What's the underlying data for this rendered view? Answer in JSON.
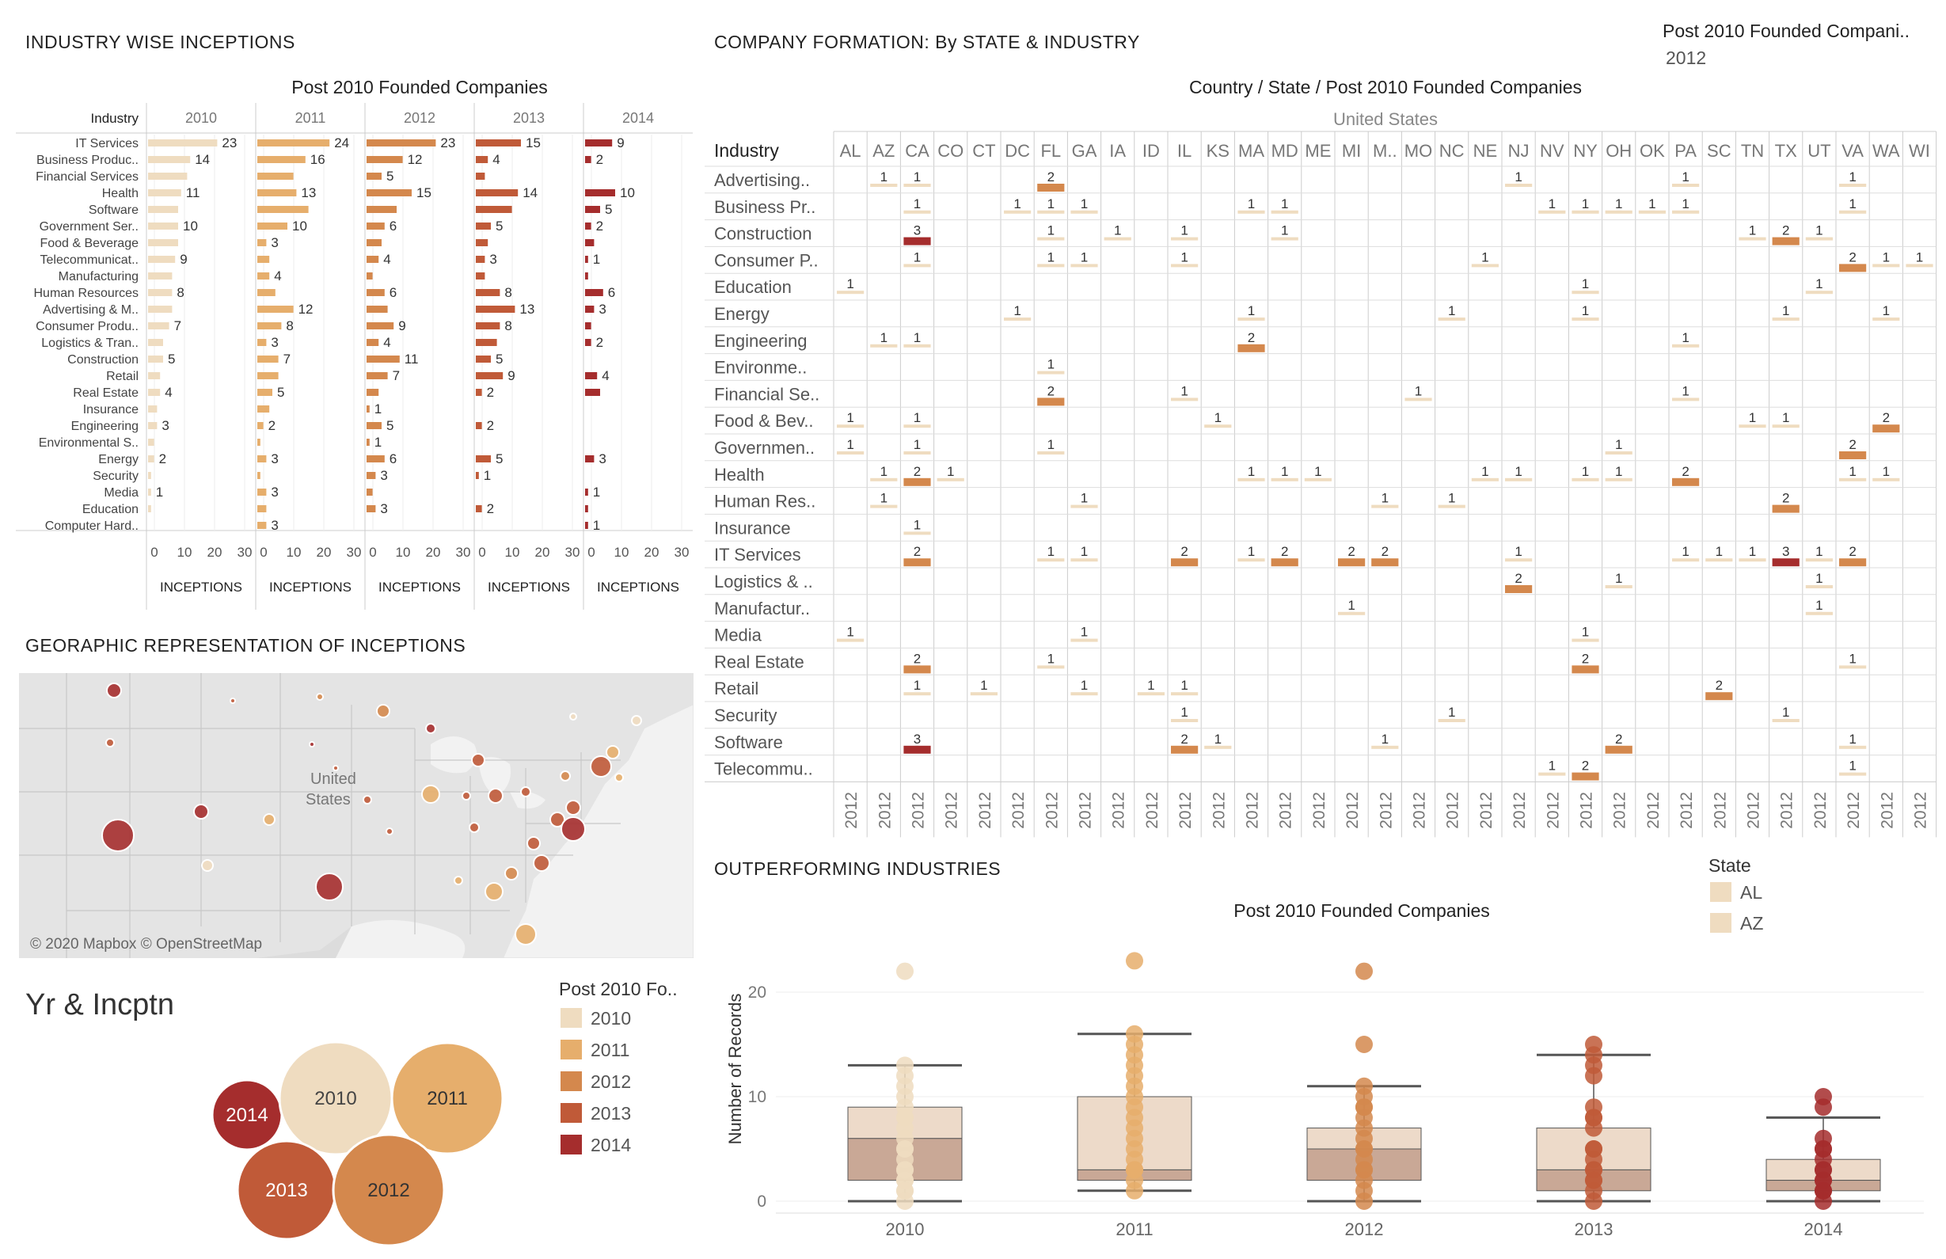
{
  "titles": {
    "industry_wise": "INDUSTRY WISE INCEPTIONS",
    "company_formation": "COMPANY FORMATION: By STATE & INDUSTRY",
    "geo": "GEORAPHIC REPRESENTATION OF INCEPTIONS",
    "outperforming": "OUTPERFORMING INDUSTRIES",
    "yr_incptn": "Yr & Incptn"
  },
  "filter": {
    "label": "Post 2010 Founded Compani..",
    "value": "2012"
  },
  "industry_chart": {
    "header": "Post 2010 Founded Companies",
    "row_header": "Industry",
    "axis_label": "INCEPTIONS",
    "ticks": [
      "0",
      "10",
      "20",
      "30"
    ],
    "years": [
      "2010",
      "2011",
      "2012",
      "2013",
      "2014"
    ],
    "industries": [
      "IT Services",
      "Business Produc..",
      "Financial Services",
      "Health",
      "Software",
      "Government Ser..",
      "Food & Beverage",
      "Telecommunicat..",
      "Manufacturing",
      "Human Resources",
      "Advertising & M..",
      "Consumer Produ..",
      "Logistics & Tran..",
      "Construction",
      "Retail",
      "Real Estate",
      "Insurance",
      "Engineering",
      "Environmental S..",
      "Energy",
      "Security",
      "Media",
      "Education",
      "Computer Hard.."
    ],
    "values": [
      [
        23,
        14,
        13,
        11,
        10,
        10,
        10,
        9,
        8,
        8,
        8,
        7,
        5,
        5,
        4,
        4,
        3,
        3,
        2,
        2,
        1,
        1,
        1,
        0
      ],
      [
        24,
        16,
        12,
        13,
        17,
        10,
        3,
        4,
        4,
        6,
        12,
        8,
        3,
        7,
        7,
        5,
        4,
        2,
        1,
        3,
        1,
        3,
        3,
        3
      ],
      [
        23,
        12,
        5,
        15,
        10,
        6,
        5,
        4,
        2,
        6,
        7,
        9,
        4,
        11,
        7,
        4,
        1,
        5,
        1,
        6,
        3,
        2,
        3,
        0
      ],
      [
        15,
        4,
        3,
        14,
        12,
        5,
        4,
        3,
        3,
        8,
        13,
        8,
        7,
        5,
        9,
        2,
        0,
        2,
        0,
        5,
        1,
        0,
        2,
        0
      ],
      [
        9,
        2,
        0,
        10,
        5,
        2,
        3,
        1,
        1,
        6,
        3,
        2,
        2,
        0,
        4,
        5,
        0,
        0,
        0,
        3,
        0,
        1,
        1,
        1
      ]
    ],
    "labels": [
      [
        "23",
        "14",
        "",
        "11",
        "",
        "10",
        "",
        "9",
        "",
        "8",
        "",
        "7",
        "",
        "5",
        "",
        "4",
        "",
        "3",
        "",
        "2",
        "",
        "1",
        "",
        ""
      ],
      [
        "24",
        "16",
        "",
        "13",
        "",
        "10",
        "3",
        "",
        "4",
        "",
        "12",
        "8",
        "3",
        "7",
        "",
        "5",
        "",
        "2",
        "",
        "3",
        "",
        "3",
        "",
        "3"
      ],
      [
        "23",
        "12",
        "5",
        "15",
        "",
        "6",
        "",
        "4",
        "",
        "6",
        "",
        "9",
        "4",
        "11",
        "7",
        "",
        "1",
        "5",
        "1",
        "6",
        "3",
        "",
        "3",
        ""
      ],
      [
        "15",
        "4",
        "",
        "14",
        "",
        "5",
        "",
        "3",
        "",
        "8",
        "13",
        "8",
        "",
        "5",
        "9",
        "2",
        "",
        "2",
        "",
        "5",
        "1",
        "",
        "2",
        ""
      ],
      [
        "9",
        "2",
        "",
        "10",
        "5",
        "2",
        "",
        "1",
        "",
        "6",
        "3",
        "",
        "2",
        "",
        "4",
        "",
        "",
        "",
        "",
        "3",
        "",
        "1",
        "",
        "1"
      ]
    ]
  },
  "heatmap": {
    "header": "Country  /  State  /  Post 2010 Founded Companies",
    "country": "United States",
    "row_header": "Industry",
    "states": [
      "AL",
      "AZ",
      "CA",
      "CO",
      "CT",
      "DC",
      "FL",
      "GA",
      "IA",
      "ID",
      "IL",
      "KS",
      "MA",
      "MD",
      "ME",
      "MI",
      "M..",
      "MO",
      "NC",
      "NE",
      "NJ",
      "NV",
      "NY",
      "OH",
      "OK",
      "PA",
      "SC",
      "TN",
      "TX",
      "UT",
      "VA",
      "WA",
      "WI"
    ],
    "year_label": "2012",
    "industries": [
      "Advertising..",
      "Business Pr..",
      "Construction",
      "Consumer P..",
      "Education",
      "Energy",
      "Engineering",
      "Environme..",
      "Financial Se..",
      "Food & Bev..",
      "Governmen..",
      "Health",
      "Human Res..",
      "Insurance",
      "IT Services",
      "Logistics & ..",
      "Manufactur..",
      "Media",
      "Real Estate",
      "Retail",
      "Security",
      "Software",
      "Telecommu.."
    ],
    "cells": [
      [
        0,
        1,
        1,
        0,
        0,
        0,
        2,
        0,
        0,
        0,
        0,
        0,
        0,
        0,
        0,
        0,
        0,
        0,
        0,
        0,
        1,
        0,
        0,
        0,
        0,
        1,
        0,
        0,
        0,
        0,
        1,
        0,
        0
      ],
      [
        0,
        0,
        1,
        0,
        0,
        1,
        1,
        1,
        0,
        0,
        0,
        0,
        1,
        1,
        0,
        0,
        0,
        0,
        0,
        0,
        0,
        1,
        1,
        1,
        1,
        1,
        0,
        0,
        0,
        0,
        1,
        0,
        0
      ],
      [
        0,
        0,
        3,
        0,
        0,
        0,
        1,
        0,
        1,
        0,
        1,
        0,
        0,
        1,
        0,
        0,
        0,
        0,
        0,
        0,
        0,
        0,
        0,
        0,
        0,
        0,
        0,
        1,
        2,
        1,
        0,
        0,
        0
      ],
      [
        0,
        0,
        1,
        0,
        0,
        0,
        1,
        1,
        0,
        0,
        1,
        0,
        0,
        0,
        0,
        0,
        0,
        0,
        0,
        1,
        0,
        0,
        0,
        0,
        0,
        0,
        0,
        0,
        0,
        0,
        2,
        1,
        1
      ],
      [
        1,
        0,
        0,
        0,
        0,
        0,
        0,
        0,
        0,
        0,
        0,
        0,
        0,
        0,
        0,
        0,
        0,
        0,
        0,
        0,
        0,
        0,
        1,
        0,
        0,
        0,
        0,
        0,
        0,
        1,
        0,
        0,
        0
      ],
      [
        0,
        0,
        0,
        0,
        0,
        1,
        0,
        0,
        0,
        0,
        0,
        0,
        1,
        0,
        0,
        0,
        0,
        0,
        1,
        0,
        0,
        0,
        1,
        0,
        0,
        0,
        0,
        0,
        1,
        0,
        0,
        1,
        0
      ],
      [
        0,
        1,
        1,
        0,
        0,
        0,
        0,
        0,
        0,
        0,
        0,
        0,
        2,
        0,
        0,
        0,
        0,
        0,
        0,
        0,
        0,
        0,
        0,
        0,
        0,
        1,
        0,
        0,
        0,
        0,
        0,
        0,
        0
      ],
      [
        0,
        0,
        0,
        0,
        0,
        0,
        1,
        0,
        0,
        0,
        0,
        0,
        0,
        0,
        0,
        0,
        0,
        0,
        0,
        0,
        0,
        0,
        0,
        0,
        0,
        0,
        0,
        0,
        0,
        0,
        0,
        0,
        0
      ],
      [
        0,
        0,
        0,
        0,
        0,
        0,
        2,
        0,
        0,
        0,
        1,
        0,
        0,
        0,
        0,
        0,
        0,
        1,
        0,
        0,
        0,
        0,
        0,
        0,
        0,
        1,
        0,
        0,
        0,
        0,
        0,
        0,
        0
      ],
      [
        1,
        0,
        1,
        0,
        0,
        0,
        0,
        0,
        0,
        0,
        0,
        1,
        0,
        0,
        0,
        0,
        0,
        0,
        0,
        0,
        0,
        0,
        0,
        0,
        0,
        0,
        0,
        1,
        1,
        0,
        0,
        2,
        0
      ],
      [
        1,
        0,
        1,
        0,
        0,
        0,
        1,
        0,
        0,
        0,
        0,
        0,
        0,
        0,
        0,
        0,
        0,
        0,
        0,
        0,
        0,
        0,
        0,
        1,
        0,
        0,
        0,
        0,
        0,
        0,
        2,
        0,
        0
      ],
      [
        0,
        1,
        2,
        1,
        0,
        0,
        0,
        0,
        0,
        0,
        0,
        0,
        1,
        1,
        1,
        0,
        0,
        0,
        0,
        1,
        1,
        0,
        1,
        1,
        0,
        2,
        0,
        0,
        0,
        0,
        1,
        1,
        0
      ],
      [
        0,
        1,
        0,
        0,
        0,
        0,
        0,
        1,
        0,
        0,
        0,
        0,
        0,
        0,
        0,
        0,
        1,
        0,
        1,
        0,
        0,
        0,
        0,
        0,
        0,
        0,
        0,
        0,
        2,
        0,
        0,
        0,
        0
      ],
      [
        0,
        0,
        1,
        0,
        0,
        0,
        0,
        0,
        0,
        0,
        0,
        0,
        0,
        0,
        0,
        0,
        0,
        0,
        0,
        0,
        0,
        0,
        0,
        0,
        0,
        0,
        0,
        0,
        0,
        0,
        0,
        0,
        0
      ],
      [
        0,
        0,
        2,
        0,
        0,
        0,
        1,
        1,
        0,
        0,
        2,
        0,
        1,
        2,
        0,
        2,
        2,
        0,
        0,
        0,
        1,
        0,
        0,
        0,
        0,
        1,
        1,
        1,
        3,
        1,
        2,
        0,
        0
      ],
      [
        0,
        0,
        0,
        0,
        0,
        0,
        0,
        0,
        0,
        0,
        0,
        0,
        0,
        0,
        0,
        0,
        0,
        0,
        0,
        0,
        2,
        0,
        0,
        1,
        0,
        0,
        0,
        0,
        0,
        1,
        0,
        0,
        0
      ],
      [
        0,
        0,
        0,
        0,
        0,
        0,
        0,
        0,
        0,
        0,
        0,
        0,
        0,
        0,
        0,
        1,
        0,
        0,
        0,
        0,
        0,
        0,
        0,
        0,
        0,
        0,
        0,
        0,
        0,
        1,
        0,
        0,
        0
      ],
      [
        1,
        0,
        0,
        0,
        0,
        0,
        0,
        1,
        0,
        0,
        0,
        0,
        0,
        0,
        0,
        0,
        0,
        0,
        0,
        0,
        0,
        0,
        1,
        0,
        0,
        0,
        0,
        0,
        0,
        0,
        0,
        0,
        0
      ],
      [
        0,
        0,
        2,
        0,
        0,
        0,
        1,
        0,
        0,
        0,
        0,
        0,
        0,
        0,
        0,
        0,
        0,
        0,
        0,
        0,
        0,
        0,
        2,
        0,
        0,
        0,
        0,
        0,
        0,
        0,
        1,
        0,
        0
      ],
      [
        0,
        0,
        1,
        0,
        1,
        0,
        0,
        1,
        0,
        1,
        1,
        0,
        0,
        0,
        0,
        0,
        0,
        0,
        0,
        0,
        0,
        0,
        0,
        0,
        0,
        0,
        2,
        0,
        0,
        0,
        0,
        0,
        0
      ],
      [
        0,
        0,
        0,
        0,
        0,
        0,
        0,
        0,
        0,
        0,
        1,
        0,
        0,
        0,
        0,
        0,
        0,
        0,
        1,
        0,
        0,
        0,
        0,
        0,
        0,
        0,
        0,
        0,
        1,
        0,
        0,
        0,
        0
      ],
      [
        0,
        0,
        3,
        0,
        0,
        0,
        0,
        0,
        0,
        0,
        2,
        1,
        0,
        0,
        0,
        0,
        1,
        0,
        0,
        0,
        0,
        0,
        0,
        2,
        0,
        0,
        0,
        0,
        0,
        0,
        1,
        0,
        0
      ],
      [
        0,
        0,
        0,
        0,
        0,
        0,
        0,
        0,
        0,
        0,
        0,
        0,
        0,
        0,
        0,
        0,
        0,
        0,
        0,
        0,
        0,
        1,
        2,
        0,
        0,
        0,
        0,
        0,
        0,
        0,
        1,
        0,
        0
      ]
    ]
  },
  "map": {
    "country_label": "United States",
    "attribution": "© 2020 Mapbox © OpenStreetMap"
  },
  "bubble_legend": {
    "title": "Post 2010 Fo..",
    "items": [
      {
        "label": "2010",
        "color": "#efdcc0"
      },
      {
        "label": "2011",
        "color": "#e6ae6c"
      },
      {
        "label": "2012",
        "color": "#d4884d"
      },
      {
        "label": "2013",
        "color": "#c05a38"
      },
      {
        "label": "2014",
        "color": "#a52d2d"
      }
    ]
  },
  "bubbles": [
    {
      "label": "2014",
      "color": "#a52d2d"
    },
    {
      "label": "2010",
      "color": "#efdcc0"
    },
    {
      "label": "2011",
      "color": "#e6ae6c"
    },
    {
      "label": "2013",
      "color": "#c05a38"
    },
    {
      "label": "2012",
      "color": "#d4884d"
    }
  ],
  "state_legend": {
    "title": "State",
    "items": [
      {
        "label": "AL",
        "color": "#efdcc0"
      },
      {
        "label": "AZ",
        "color": "#efdcc0"
      }
    ]
  },
  "box_chart": {
    "header": "Post 2010 Founded Companies",
    "ylabel": "Number of Records",
    "ticks": [
      "0",
      "10",
      "20"
    ],
    "years": [
      "2010",
      "2011",
      "2012",
      "2013",
      "2014"
    ],
    "colors": [
      "#efdcc0",
      "#e6ae6c",
      "#d4884d",
      "#c05a38",
      "#a52d2d"
    ],
    "boxes": [
      {
        "min": 0,
        "q1": 2,
        "median": 6,
        "q3": 9,
        "max": 13,
        "points": [
          22,
          13,
          12,
          11,
          10,
          9,
          8,
          8,
          7,
          6,
          5,
          5,
          4,
          3,
          3,
          2,
          2,
          1,
          1,
          0
        ]
      },
      {
        "min": 1,
        "q1": 2,
        "median": 3,
        "q3": 10,
        "max": 16,
        "points": [
          23,
          16,
          15,
          14,
          13,
          12,
          11,
          10,
          9,
          8,
          7,
          6,
          5,
          4,
          3,
          3,
          3,
          2,
          1
        ]
      },
      {
        "min": 0,
        "q1": 2,
        "median": 5,
        "q3": 7,
        "max": 11,
        "points": [
          22,
          15,
          11,
          10,
          9,
          9,
          8,
          7,
          6,
          5,
          5,
          4,
          3,
          3,
          2,
          1,
          0
        ]
      },
      {
        "min": 0,
        "q1": 1,
        "median": 3,
        "q3": 7,
        "max": 14,
        "points": [
          15,
          14,
          13,
          12,
          9,
          8,
          8,
          7,
          5,
          5,
          4,
          3,
          3,
          2,
          2,
          1,
          0
        ]
      },
      {
        "min": 0,
        "q1": 1,
        "median": 2,
        "q3": 4,
        "max": 8,
        "points": [
          10,
          9,
          6,
          5,
          5,
          4,
          3,
          3,
          2,
          2,
          1,
          1,
          1,
          0
        ]
      }
    ]
  }
}
